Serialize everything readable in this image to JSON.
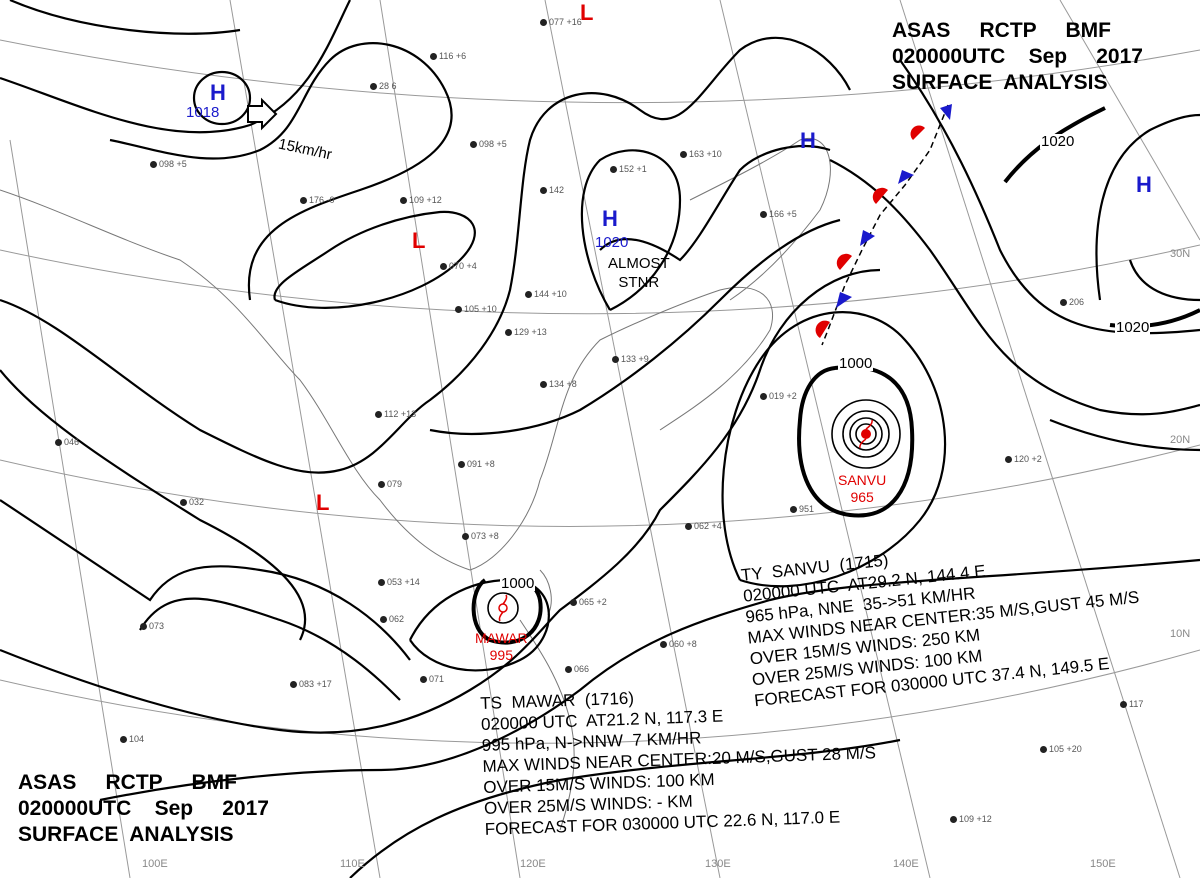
{
  "header_top_right": {
    "line1": "ASAS     RCTP     BMF",
    "line2": "020000UTC    Sep     2017",
    "line3": "SURFACE  ANALYSIS"
  },
  "header_bottom_left": {
    "line1": "ASAS     RCTP     BMF",
    "line2": "020000UTC    Sep     2017",
    "line3": "SURFACE  ANALYSIS"
  },
  "longitude_labels": [
    "100E",
    "110E",
    "120E",
    "130E",
    "140E",
    "150E"
  ],
  "latitude_labels": [
    "30N",
    "20N",
    "10N"
  ],
  "pressure_centers": [
    {
      "type": "H",
      "value": "1018",
      "color": "#1a1acc"
    },
    {
      "type": "H",
      "value": "1020",
      "color": "#1a1acc"
    },
    {
      "type": "H",
      "value": "",
      "color": "#1a1acc"
    },
    {
      "type": "H",
      "value": "",
      "color": "#1a1acc"
    },
    {
      "type": "L",
      "value": "",
      "color": "#e00000"
    },
    {
      "type": "L",
      "value": "",
      "color": "#e00000"
    },
    {
      "type": "L",
      "value": "",
      "color": "#e00000"
    }
  ],
  "motion_label": "15km/hr",
  "stationary_note": {
    "line1": "ALMOST",
    "line2": "STNR"
  },
  "isobar_labels": [
    "1000",
    "1000",
    "1020",
    "1020"
  ],
  "typhoon_sanvu": {
    "name": "SANVU",
    "pressure": "965",
    "color": "#e00000",
    "lines": [
      "TY  SANVU  (1715)",
      "020000 UTC  AT29.2 N, 144.4 E",
      "965 hPa, NNE  35->51 KM/HR",
      "MAX WINDS NEAR CENTER:35 M/S,GUST 45 M/S",
      "OVER 15M/S WINDS: 250 KM",
      "OVER 25M/S WINDS: 100 KM",
      "FORECAST FOR 030000 UTC 37.4 N, 149.5 E"
    ]
  },
  "storm_mawar": {
    "name": "MAWAR",
    "pressure": "995",
    "color": "#e00000",
    "lines": [
      "TS  MAWAR  (1716)",
      "020000 UTC  AT21.2 N, 117.3 E",
      "995 hPa, N->NNW  7 KM/HR",
      "MAX WINDS NEAR CENTER:20 M/S,GUST 28 M/S",
      "OVER 15M/S WINDS: 100 KM",
      "OVER 25M/S WINDS: - KM",
      "FORECAST FOR 030000 UTC 22.6 N, 117.0 E"
    ]
  },
  "front": {
    "type": "stationary",
    "warm_color": "#e00000",
    "cold_color": "#1a1acc"
  },
  "station_plots": [
    {
      "label": "077 +16"
    },
    {
      "label": "116 +6"
    },
    {
      "label": "28 6"
    },
    {
      "label": "098 +5"
    },
    {
      "label": "109 +12"
    },
    {
      "label": "176 -0"
    },
    {
      "label": "142"
    },
    {
      "label": "152 +1"
    },
    {
      "label": "163 +10"
    },
    {
      "label": "166 +5"
    },
    {
      "label": "070 +4"
    },
    {
      "label": "105 +10"
    },
    {
      "label": "129 +13"
    },
    {
      "label": "144 +10"
    },
    {
      "label": "133 +9"
    },
    {
      "label": "134 +8"
    },
    {
      "label": "112 +13"
    },
    {
      "label": "091 +8"
    },
    {
      "label": "079"
    },
    {
      "label": "032"
    },
    {
      "label": "046"
    },
    {
      "label": "053 +14"
    },
    {
      "label": "062"
    },
    {
      "label": "073 +8"
    },
    {
      "label": "060 +8"
    },
    {
      "label": "062 +4"
    },
    {
      "label": "083 +17"
    },
    {
      "label": "071"
    },
    {
      "label": "073"
    },
    {
      "label": "104"
    },
    {
      "label": "117"
    },
    {
      "label": "120 +2"
    },
    {
      "label": "206"
    },
    {
      "label": "105 +20"
    },
    {
      "label": "109 +12"
    },
    {
      "label": "019 +2"
    },
    {
      "label": "951"
    },
    {
      "label": "066"
    },
    {
      "label": "065 +2"
    },
    {
      "label": "098 +5"
    }
  ]
}
